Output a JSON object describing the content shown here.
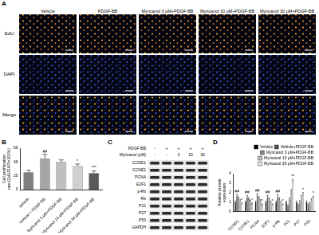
{
  "panel_labels": [
    "A",
    "B",
    "C",
    "D"
  ],
  "panel_a": {
    "columns": [
      "Vehicle",
      "PDGF-BB",
      "Myricanol 3 μM+PDGF-BB",
      "Myricanol 10 μM+PDGF-BB",
      "Myricanol 30 μM+PDGF-BB"
    ],
    "rows": [
      "EdU",
      "DAPI",
      "Merge"
    ]
  },
  "chart_data": [
    {
      "type": "bar",
      "y_label": "Cell proliferation rate (EdU/DAPI×100%)",
      "categories": [
        "Vehicle",
        "Vehicle + PDGF-BB",
        "Myricanol 3 μM+PDGF-BB",
        "Myricanol 10 μM+PDGF-BB",
        "Myricanol 30 μM+PDGF-BB"
      ],
      "values": [
        25,
        45,
        40,
        34,
        24
      ],
      "errors": [
        3,
        6,
        3,
        3,
        3
      ],
      "annotations": [
        null,
        "##",
        null,
        "*",
        "***"
      ],
      "colors": [
        "#7f7f7f",
        "#a6a6a6",
        "#bfbfbf",
        "#d0d0d0",
        "#5a5a5a"
      ],
      "ylim": [
        0,
        60
      ],
      "yticks": [
        0,
        20,
        40,
        60
      ],
      "grid": false
    },
    {
      "type": "bar",
      "y_label": "Relative protein expression",
      "categories": [
        "CCND1",
        "CCNE1",
        "PCNA",
        "E2F1",
        "p-Rb",
        "P21",
        "P27",
        "P53"
      ],
      "series": [
        {
          "name": "Vehicle",
          "color": "#000000",
          "values": [
            1,
            1,
            1,
            1,
            1,
            1,
            1,
            1
          ],
          "errors": [
            0.1,
            0.1,
            0.1,
            0.1,
            0.1,
            0.1,
            0.1,
            0.1
          ]
        },
        {
          "name": "Vehicle+PDGF-BB",
          "color": "#555555",
          "values": [
            1.6,
            1.5,
            1.7,
            1.5,
            1.6,
            0.6,
            0.7,
            0.7
          ],
          "errors": [
            0.2,
            0.2,
            0.2,
            0.2,
            0.2,
            0.1,
            0.1,
            0.1
          ],
          "annotations": [
            "##",
            "##",
            "##",
            "##",
            "##",
            null,
            null,
            null
          ]
        },
        {
          "name": "Myricanol 3 μM+PDGF-BB",
          "color": "#888888",
          "values": [
            1.4,
            1.3,
            1.4,
            1.3,
            1.3,
            1.2,
            1.0,
            0.9
          ],
          "errors": [
            0.15,
            0.15,
            0.15,
            0.15,
            0.15,
            0.2,
            0.15,
            0.1
          ]
        },
        {
          "name": "Myricanol 10 μM+PDGF-BB",
          "color": "#bbbbbb",
          "values": [
            1.1,
            1.1,
            1.1,
            1.0,
            1.0,
            2.0,
            1.5,
            1.2
          ],
          "errors": [
            0.15,
            0.1,
            0.15,
            0.1,
            0.1,
            0.3,
            0.2,
            0.15
          ]
        },
        {
          "name": "Myricanol 30 μM+PDGF-BB",
          "color": "#e6e6e6",
          "values": [
            0.8,
            0.8,
            0.7,
            0.7,
            0.7,
            3.0,
            1.8,
            1.4
          ],
          "errors": [
            0.1,
            0.1,
            0.1,
            0.1,
            0.1,
            0.4,
            0.2,
            0.2
          ],
          "annotations": [
            "*",
            "*",
            "*",
            "*",
            "*",
            "**",
            "*",
            "*"
          ]
        }
      ],
      "ylim": [
        0,
        4
      ],
      "yticks": [
        0,
        1,
        2,
        3,
        4
      ],
      "grid": false,
      "legend": "top"
    }
  ],
  "panel_c": {
    "treatments": [
      {
        "label": "PDGF-BB",
        "lanes": [
          "-",
          "+",
          "+",
          "+",
          "+"
        ]
      },
      {
        "label": "Myricanol (μM)",
        "lanes": [
          "-",
          "-",
          "3",
          "10",
          "30"
        ]
      }
    ],
    "proteins": [
      "CCND1",
      "CCNE1",
      "PCNA",
      "E2F1",
      "p-Rb",
      "Rb",
      "P21",
      "P27",
      "P53",
      "GAPDH"
    ]
  }
}
